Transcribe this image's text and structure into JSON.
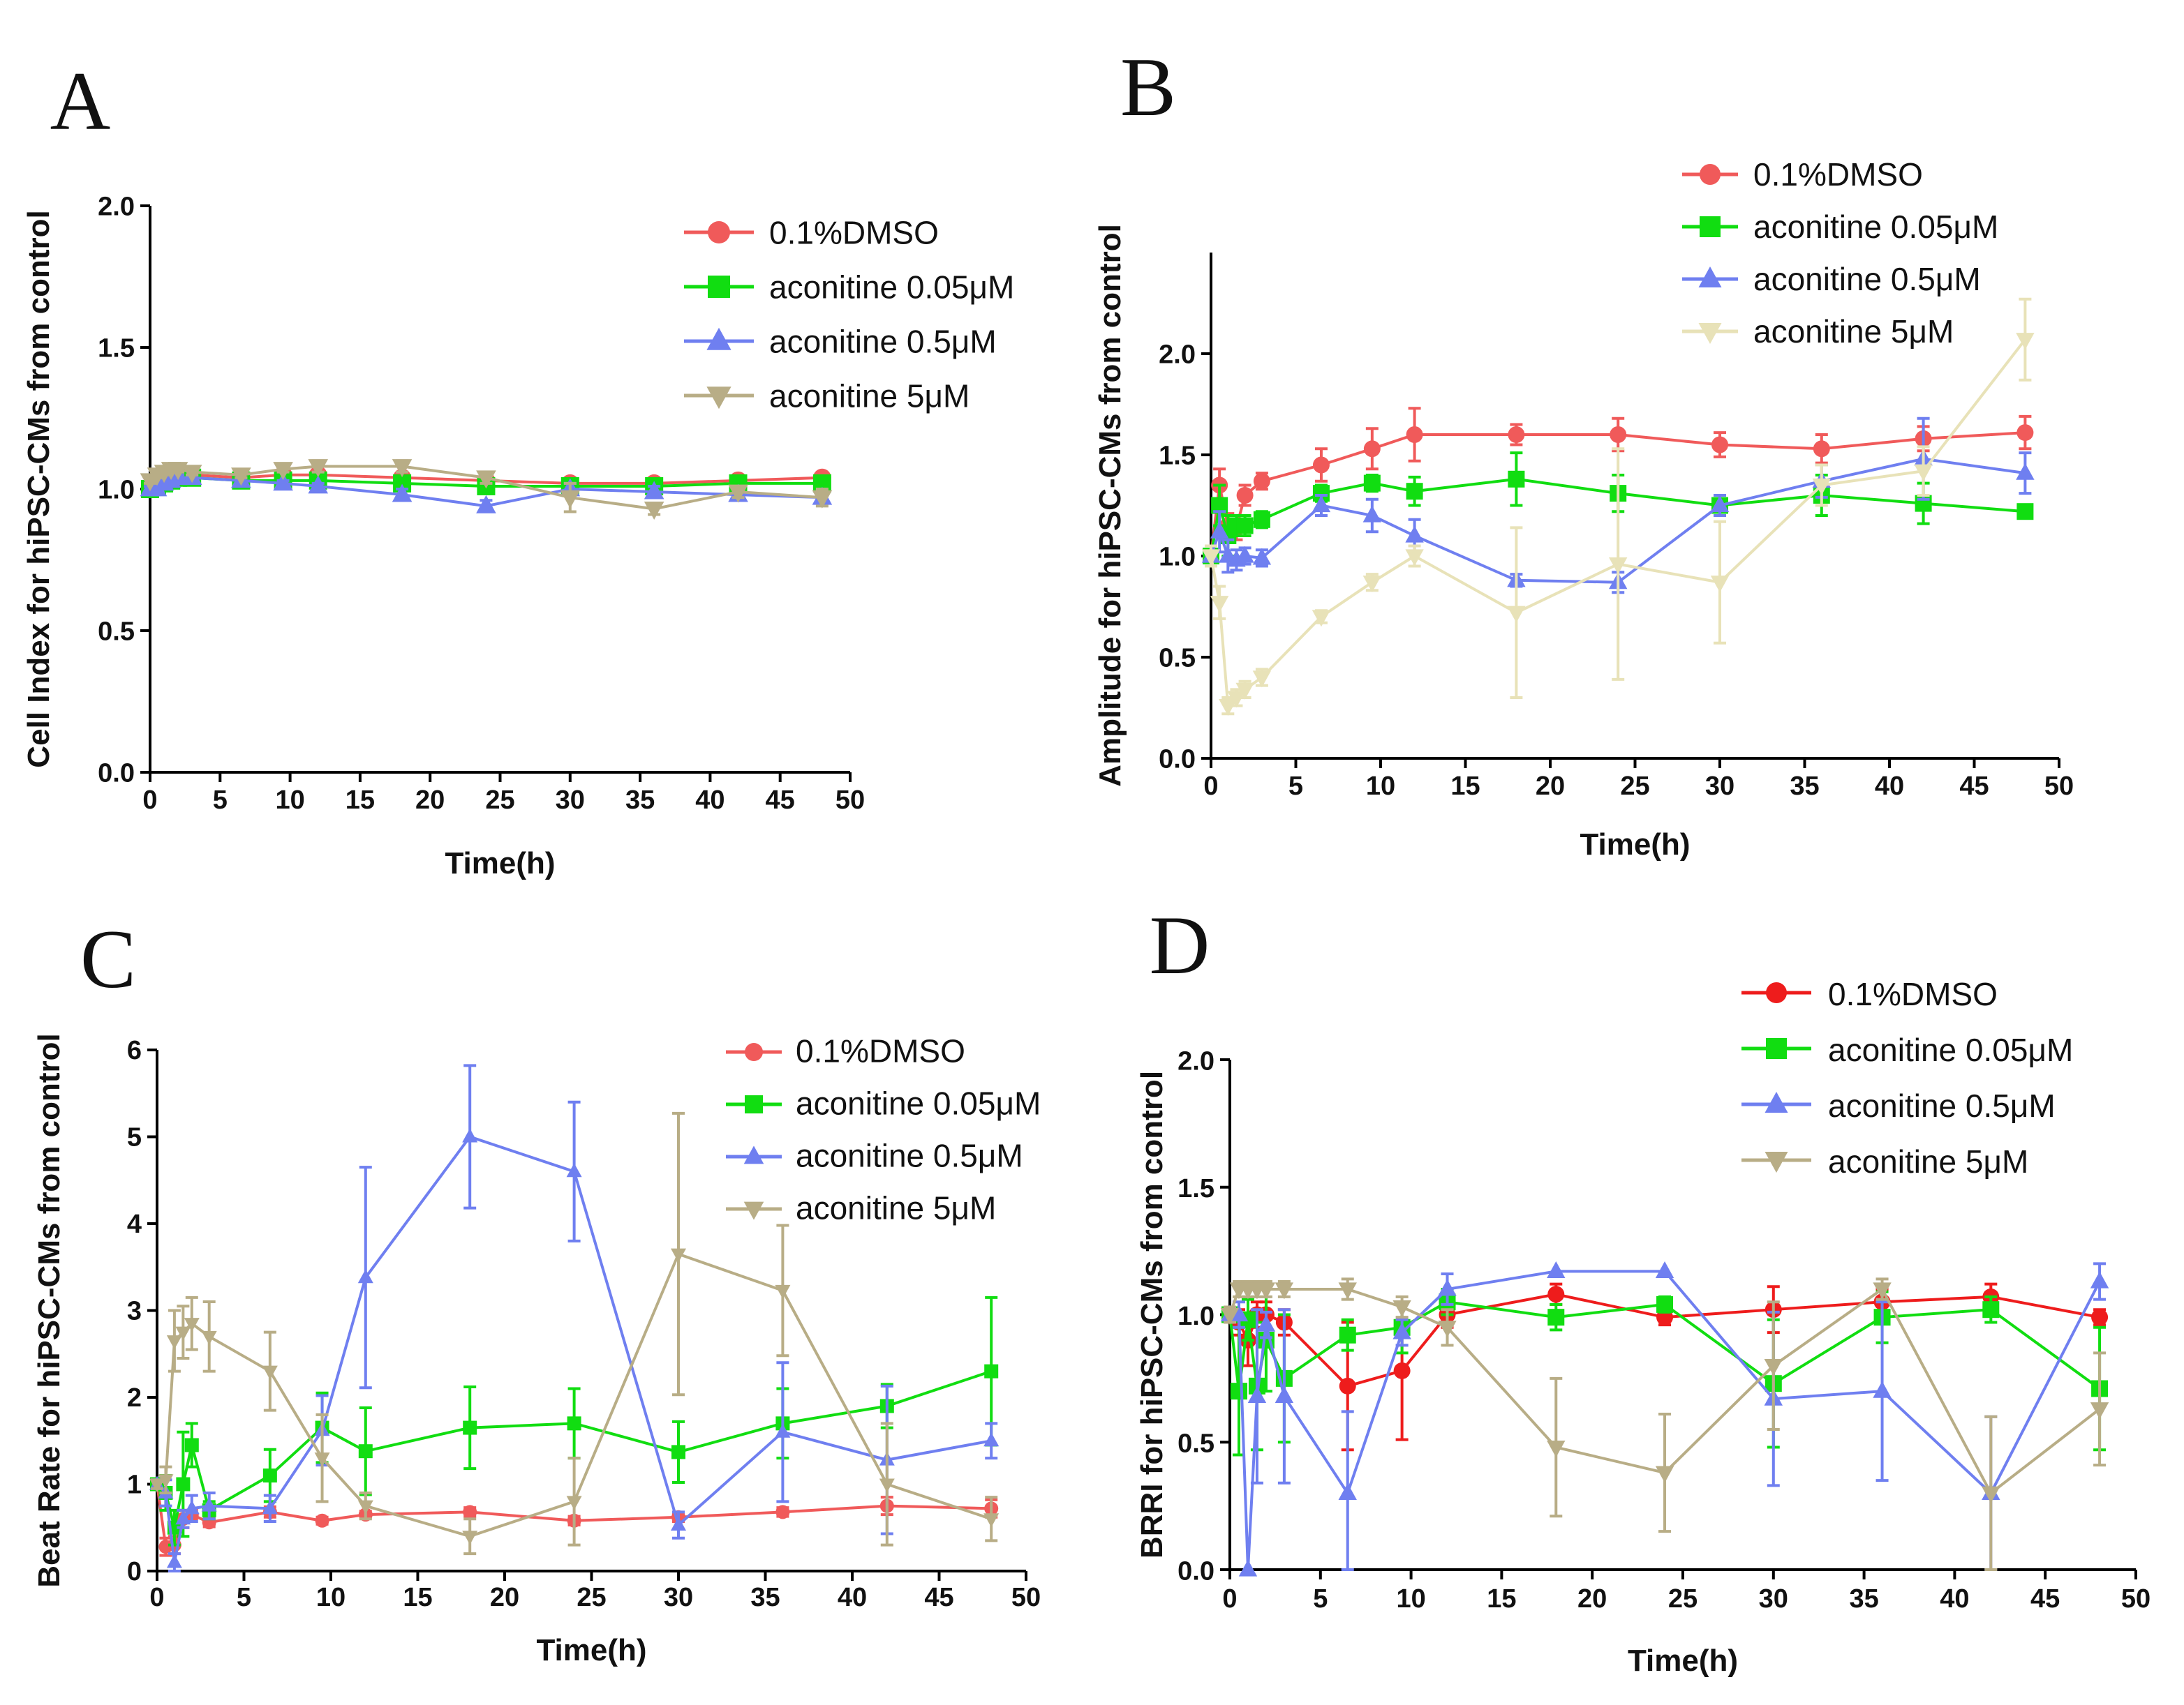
{
  "chart_data": [
    {
      "panel": "A",
      "type": "line",
      "xlabel": "Time(h)",
      "ylabel": "Cell Index for hiPSC-CMs from control",
      "xlim": [
        0,
        50
      ],
      "ylim": [
        0,
        2.0
      ],
      "xticks": [
        0,
        5,
        10,
        15,
        20,
        25,
        30,
        35,
        40,
        45,
        50
      ],
      "yticks": [
        0.0,
        0.5,
        1.0,
        1.5,
        2.0
      ],
      "ytick_labels": [
        "0.0",
        "0.5",
        "1.0",
        "1.5",
        "2.0"
      ],
      "legend_position": "top-right",
      "series": [
        {
          "name": "0.1%DMSO",
          "color": "#f05a5a",
          "marker": "circle",
          "x": [
            0,
            0.5,
            1,
            1.5,
            2,
            3,
            6.5,
            9.5,
            12,
            18,
            24,
            30,
            36,
            42,
            48
          ],
          "y": [
            1.0,
            1.02,
            1.03,
            1.04,
            1.05,
            1.05,
            1.04,
            1.05,
            1.05,
            1.04,
            1.03,
            1.02,
            1.02,
            1.03,
            1.04
          ],
          "err": [
            0.01,
            0.01,
            0.01,
            0.01,
            0.01,
            0.01,
            0.01,
            0.01,
            0.01,
            0.01,
            0.01,
            0.01,
            0.01,
            0.01,
            0.01
          ]
        },
        {
          "name": "aconitine 0.05μM",
          "color": "#11dd11",
          "marker": "square",
          "x": [
            0,
            0.5,
            1,
            1.5,
            2,
            3,
            6.5,
            9.5,
            12,
            18,
            24,
            30,
            36,
            42,
            48
          ],
          "y": [
            1.0,
            1.01,
            1.02,
            1.03,
            1.04,
            1.04,
            1.03,
            1.03,
            1.03,
            1.02,
            1.01,
            1.01,
            1.01,
            1.02,
            1.02
          ],
          "err": [
            0.01,
            0.01,
            0.01,
            0.01,
            0.01,
            0.01,
            0.01,
            0.01,
            0.01,
            0.01,
            0.01,
            0.01,
            0.01,
            0.01,
            0.01
          ]
        },
        {
          "name": "aconitine 0.5μM",
          "color": "#6f7ff0",
          "marker": "triangle",
          "x": [
            0,
            0.5,
            1,
            1.5,
            2,
            3,
            6.5,
            9.5,
            12,
            18,
            24,
            30,
            36,
            42,
            48
          ],
          "y": [
            1.0,
            1.0,
            1.02,
            1.03,
            1.04,
            1.04,
            1.03,
            1.02,
            1.01,
            0.98,
            0.94,
            1.0,
            0.99,
            0.98,
            0.97
          ],
          "err": [
            0.01,
            0.01,
            0.01,
            0.01,
            0.01,
            0.01,
            0.01,
            0.01,
            0.01,
            0.02,
            0.02,
            0.02,
            0.02,
            0.02,
            0.02
          ]
        },
        {
          "name": "aconitine 5μM",
          "color": "#b8ad86",
          "marker": "down-triangle",
          "x": [
            0,
            0.5,
            1,
            1.5,
            2,
            3,
            6.5,
            9.5,
            12,
            18,
            24,
            30,
            36,
            42,
            48
          ],
          "y": [
            1.03,
            1.05,
            1.06,
            1.07,
            1.07,
            1.06,
            1.05,
            1.07,
            1.08,
            1.08,
            1.04,
            0.97,
            0.93,
            0.99,
            0.97
          ],
          "err": [
            0.01,
            0.01,
            0.01,
            0.01,
            0.01,
            0.01,
            0.01,
            0.01,
            0.02,
            0.02,
            0.02,
            0.05,
            0.02,
            0.02,
            0.03
          ]
        }
      ]
    },
    {
      "panel": "B",
      "type": "line",
      "xlabel": "Time(h)",
      "ylabel": "Amplitude for hiPSC-CMs from control",
      "xlim": [
        0,
        50
      ],
      "ylim": [
        0,
        2.5
      ],
      "xticks": [
        0,
        5,
        10,
        15,
        20,
        25,
        30,
        35,
        40,
        45,
        50
      ],
      "yticks": [
        0.0,
        0.5,
        1.0,
        1.5,
        2.0
      ],
      "ytick_labels": [
        "0.0",
        "0.5",
        "1.0",
        "1.5",
        "2.0"
      ],
      "legend_position": "top-right",
      "series": [
        {
          "name": "0.1%DMSO",
          "color": "#f05a5a",
          "marker": "circle",
          "x": [
            0,
            0.5,
            1,
            1.5,
            2,
            3,
            6.5,
            9.5,
            12,
            18,
            24,
            30,
            36,
            42,
            48
          ],
          "y": [
            1.0,
            1.35,
            1.15,
            1.14,
            1.3,
            1.37,
            1.45,
            1.53,
            1.6,
            1.6,
            1.6,
            1.55,
            1.53,
            1.58,
            1.61
          ],
          "err": [
            0.05,
            0.08,
            0.06,
            0.06,
            0.05,
            0.04,
            0.08,
            0.1,
            0.13,
            0.05,
            0.08,
            0.06,
            0.07,
            0.06,
            0.08
          ]
        },
        {
          "name": "aconitine 0.05μM",
          "color": "#11dd11",
          "marker": "square",
          "x": [
            0,
            0.5,
            1,
            1.5,
            2,
            3,
            6.5,
            9.5,
            12,
            18,
            24,
            30,
            36,
            42,
            48
          ],
          "y": [
            1.0,
            1.25,
            1.1,
            1.15,
            1.15,
            1.18,
            1.31,
            1.36,
            1.32,
            1.38,
            1.31,
            1.25,
            1.3,
            1.26,
            1.22
          ],
          "err": [
            0.05,
            0.1,
            0.1,
            0.05,
            0.05,
            0.04,
            0.04,
            0.04,
            0.07,
            0.13,
            0.09,
            0.05,
            0.1,
            0.1,
            0.03
          ]
        },
        {
          "name": "aconitine 0.5μM",
          "color": "#6f7ff0",
          "marker": "triangle",
          "x": [
            0,
            0.5,
            1,
            1.5,
            2,
            3,
            6.5,
            9.5,
            12,
            18,
            24,
            30,
            36,
            42,
            48
          ],
          "y": [
            1.0,
            1.12,
            1.0,
            0.98,
            1.0,
            0.99,
            1.25,
            1.2,
            1.1,
            0.88,
            0.87,
            1.25,
            1.37,
            1.48,
            1.41
          ],
          "err": [
            0.05,
            0.1,
            0.08,
            0.05,
            0.04,
            0.04,
            0.05,
            0.08,
            0.08,
            0.03,
            0.05,
            0.05,
            0.08,
            0.2,
            0.1
          ]
        },
        {
          "name": "aconitine 5μM",
          "color": "#e8e2b8",
          "marker": "down-triangle",
          "x": [
            0,
            0.5,
            1,
            1.5,
            2,
            3,
            6.5,
            9.5,
            12,
            18,
            24,
            30,
            36,
            42,
            48
          ],
          "y": [
            1.0,
            0.77,
            0.26,
            0.3,
            0.34,
            0.4,
            0.7,
            0.87,
            1.0,
            0.72,
            0.96,
            0.87,
            1.35,
            1.42,
            2.07
          ],
          "err": [
            0.05,
            0.08,
            0.04,
            0.04,
            0.04,
            0.04,
            0.03,
            0.04,
            0.05,
            0.42,
            0.57,
            0.3,
            0.1,
            0.12,
            0.2
          ]
        }
      ]
    },
    {
      "panel": "C",
      "type": "line",
      "xlabel": "Time(h)",
      "ylabel": "Beat Rate for hiPSC-CMs from control",
      "xlim": [
        0,
        50
      ],
      "ylim": [
        0,
        6
      ],
      "xticks": [
        0,
        5,
        10,
        15,
        20,
        25,
        30,
        35,
        40,
        45,
        50
      ],
      "yticks": [
        0,
        1,
        2,
        3,
        4,
        5,
        6
      ],
      "ytick_labels": [
        "0",
        "1",
        "2",
        "3",
        "4",
        "5",
        "6"
      ],
      "legend_position": "top-right",
      "series": [
        {
          "name": "0.1%DMSO",
          "color": "#f05a5a",
          "marker": "circle",
          "x": [
            0,
            0.5,
            1,
            1.5,
            2,
            3,
            6.5,
            9.5,
            12,
            18,
            24,
            30,
            36,
            42,
            48
          ],
          "y": [
            1.0,
            0.28,
            0.3,
            0.6,
            0.65,
            0.56,
            0.68,
            0.58,
            0.65,
            0.68,
            0.58,
            0.62,
            0.68,
            0.75,
            0.72
          ],
          "err": [
            0.05,
            0.1,
            0.1,
            0.1,
            0.05,
            0.05,
            0.06,
            0.04,
            0.04,
            0.05,
            0.05,
            0.05,
            0.05,
            0.1,
            0.1
          ]
        },
        {
          "name": "aconitine 0.05μM",
          "color": "#11dd11",
          "marker": "square",
          "x": [
            0,
            0.5,
            1,
            1.5,
            2,
            3,
            6.5,
            9.5,
            12,
            18,
            24,
            30,
            36,
            42,
            48
          ],
          "y": [
            1.0,
            0.9,
            0.5,
            1.0,
            1.45,
            0.7,
            1.1,
            1.65,
            1.38,
            1.65,
            1.7,
            1.37,
            1.7,
            1.9,
            2.3
          ],
          "err": [
            0.05,
            0.2,
            0.2,
            0.6,
            0.25,
            0.1,
            0.3,
            0.4,
            0.5,
            0.47,
            0.4,
            0.35,
            0.4,
            0.25,
            0.85
          ]
        },
        {
          "name": " aconitine 0.5μM",
          "color": "#6f7ff0",
          "marker": "triangle",
          "x": [
            0,
            0.5,
            1,
            1.5,
            2,
            3,
            6.5,
            9.5,
            12,
            18,
            24,
            30,
            36,
            42,
            48
          ],
          "y": [
            1.0,
            0.9,
            0.1,
            0.6,
            0.72,
            0.75,
            0.72,
            1.62,
            3.38,
            5.0,
            4.6,
            0.53,
            1.6,
            1.28,
            1.5
          ],
          "err": [
            0.05,
            0.15,
            0.1,
            0.1,
            0.15,
            0.15,
            0.15,
            0.4,
            1.27,
            0.82,
            0.8,
            0.15,
            0.8,
            0.85,
            0.2
          ]
        },
        {
          "name": "aconitine 5μM",
          "color": "#b8ad86",
          "marker": "down-triangle",
          "x": [
            0,
            0.5,
            1,
            1.5,
            2,
            3,
            6.5,
            9.5,
            12,
            18,
            24,
            30,
            36,
            42,
            48
          ],
          "y": [
            1.0,
            1.05,
            2.65,
            2.75,
            2.85,
            2.7,
            2.3,
            1.3,
            0.75,
            0.4,
            0.8,
            3.65,
            3.23,
            1.0,
            0.6
          ],
          "err": [
            0.05,
            0.15,
            0.35,
            0.3,
            0.3,
            0.4,
            0.45,
            0.5,
            0.15,
            0.2,
            0.5,
            1.62,
            0.75,
            0.7,
            0.25
          ]
        }
      ]
    },
    {
      "panel": "D",
      "type": "line",
      "xlabel": "Time(h)",
      "ylabel": "BRRI for hiPSC-CMs from control",
      "xlim": [
        0,
        50
      ],
      "ylim": [
        0,
        2.0
      ],
      "xticks": [
        0,
        5,
        10,
        15,
        20,
        25,
        30,
        35,
        40,
        45,
        50
      ],
      "yticks": [
        0.0,
        0.5,
        1.0,
        1.5,
        2.0
      ],
      "ytick_labels": [
        "0.0",
        "0.5",
        "1.0",
        "1.5",
        "2.0"
      ],
      "legend_position": "top-right",
      "series": [
        {
          "name": "0.1%DMSO",
          "color": "#ee1c1c",
          "marker": "circle",
          "x": [
            0,
            0.5,
            1,
            1.5,
            2,
            3,
            6.5,
            9.5,
            12,
            18,
            24,
            30,
            36,
            42,
            48
          ],
          "y": [
            1.0,
            0.97,
            0.9,
            1.0,
            1.0,
            0.97,
            0.72,
            0.78,
            1.0,
            1.08,
            0.99,
            1.02,
            1.05,
            1.07,
            0.99
          ],
          "err": [
            0.03,
            0.05,
            0.1,
            0.05,
            0.05,
            0.05,
            0.25,
            0.27,
            0.05,
            0.04,
            0.03,
            0.09,
            0.05,
            0.05,
            0.03
          ]
        },
        {
          "name": "aconitine 0.05μM",
          "color": "#11dd11",
          "marker": "square",
          "x": [
            0,
            0.5,
            1,
            1.5,
            2,
            3,
            6.5,
            9.5,
            12,
            18,
            24,
            30,
            36,
            42,
            48
          ],
          "y": [
            1.0,
            0.7,
            0.98,
            0.72,
            0.9,
            0.75,
            0.92,
            0.95,
            1.05,
            0.99,
            1.04,
            0.73,
            0.99,
            1.02,
            0.71
          ],
          "err": [
            0.03,
            0.25,
            0.08,
            0.25,
            0.2,
            0.25,
            0.06,
            0.1,
            0.05,
            0.05,
            0.03,
            0.25,
            0.1,
            0.05,
            0.24
          ]
        },
        {
          "name": "aconitine 0.5μM",
          "color": "#6f7ff0",
          "marker": "triangle",
          "x": [
            0,
            0.5,
            1,
            1.5,
            2,
            3,
            6.5,
            9.5,
            12,
            18,
            24,
            30,
            36,
            42,
            48
          ],
          "y": [
            1.0,
            1.0,
            0.0,
            0.68,
            0.96,
            0.68,
            0.3,
            0.93,
            1.1,
            1.17,
            1.17,
            0.67,
            0.7,
            0.3,
            1.13
          ],
          "err": [
            0.03,
            0.05,
            0.0,
            0.34,
            0.05,
            0.34,
            0.32,
            0.05,
            0.06,
            0.0,
            0.0,
            0.34,
            0.35,
            0.3,
            0.07
          ]
        },
        {
          "name": "aconitine 5μM",
          "color": "#b8ad86",
          "marker": "down-triangle",
          "x": [
            0,
            0.5,
            1,
            1.5,
            2,
            3,
            6.5,
            9.5,
            12,
            18,
            24,
            30,
            36,
            42,
            48
          ],
          "y": [
            1.0,
            1.1,
            1.1,
            1.1,
            1.1,
            1.1,
            1.1,
            1.03,
            0.95,
            0.48,
            0.38,
            0.8,
            1.1,
            0.3,
            0.63
          ],
          "err": [
            0.03,
            0.03,
            0.03,
            0.03,
            0.03,
            0.03,
            0.04,
            0.04,
            0.07,
            0.27,
            0.23,
            0.25,
            0.04,
            0.3,
            0.22
          ]
        }
      ]
    }
  ]
}
